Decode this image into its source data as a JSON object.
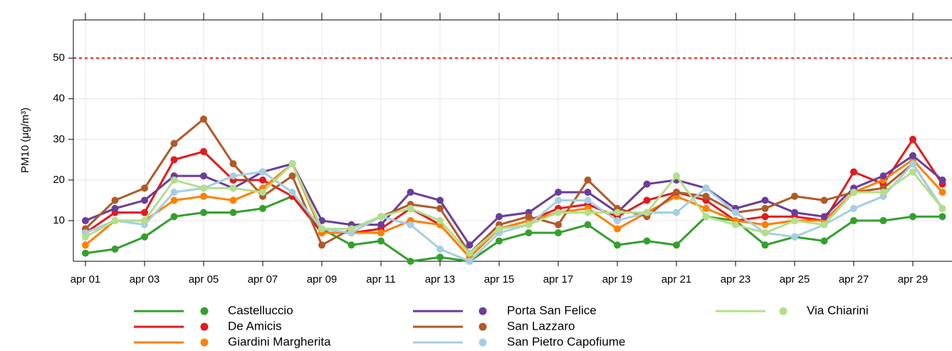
{
  "chart_data": {
    "type": "line",
    "y_label": "PM10 (μg/m³)",
    "categories": [
      "apr 01",
      null,
      "apr 03",
      null,
      "apr 05",
      null,
      "apr 07",
      null,
      "apr 09",
      null,
      "apr 11",
      null,
      "apr 13",
      null,
      "apr 15",
      null,
      "apr 17",
      null,
      "apr 19",
      null,
      "apr 21",
      null,
      "apr 23",
      null,
      "apr 25",
      null,
      "apr 27",
      null,
      "apr 29",
      null
    ],
    "ylim": [
      0,
      59.4
    ],
    "yticks": [
      10,
      20,
      30,
      40,
      50
    ],
    "grid": true,
    "threshold": 50,
    "threshold_color": "#e31a1c",
    "series": [
      {
        "name": "Castelluccio",
        "color": "#33a02c",
        "values": [
          2,
          3,
          6,
          11,
          12,
          12,
          13,
          16,
          8,
          4,
          5,
          0,
          1,
          0,
          5,
          7,
          7,
          9,
          4,
          5,
          4,
          11,
          10,
          4,
          6,
          5,
          10,
          10,
          11,
          11
        ]
      },
      {
        "name": "De Amicis",
        "color": "#e31a1c",
        "values": [
          7,
          12,
          12,
          25,
          27,
          20,
          20,
          16,
          7,
          7,
          8,
          13,
          9,
          1,
          8,
          10,
          13,
          14,
          11,
          15,
          17,
          15,
          10,
          11,
          11,
          10,
          22,
          19,
          30,
          19
        ]
      },
      {
        "name": "Giardini Margherita",
        "color": "#ff7f00",
        "values": [
          4,
          10,
          10,
          15,
          16,
          15,
          18,
          24,
          7,
          7,
          7,
          10,
          9,
          1,
          8,
          10,
          12,
          13,
          8,
          12,
          16,
          13,
          10,
          9,
          10,
          10,
          17,
          20,
          25,
          17
        ]
      },
      {
        "name": "Porta San Felice",
        "color": "#6a3d9a",
        "values": [
          10,
          13,
          15,
          21,
          21,
          18,
          22,
          24,
          10,
          9,
          9,
          17,
          15,
          4,
          11,
          12,
          17,
          17,
          12,
          19,
          20,
          18,
          13,
          15,
          12,
          11,
          18,
          21,
          26,
          20
        ]
      },
      {
        "name": "San Lazzaro",
        "color": "#b15928",
        "values": [
          8,
          15,
          18,
          29,
          35,
          24,
          16,
          21,
          4,
          8,
          11,
          14,
          13,
          2,
          9,
          11,
          9,
          20,
          13,
          11,
          17,
          16,
          12,
          13,
          16,
          15,
          17,
          18,
          24,
          13
        ]
      },
      {
        "name": "San Pietro Capofiume",
        "color": "#a6cee3",
        "values": [
          7,
          10,
          9,
          17,
          18,
          21,
          22,
          17,
          8,
          7,
          11,
          9,
          3,
          0,
          7,
          9,
          15,
          15,
          10,
          12,
          12,
          18,
          12,
          7,
          6,
          9,
          13,
          16,
          24,
          13
        ]
      },
      {
        "name": "Via Chiarini",
        "color": "#b2df8a",
        "values": [
          6,
          10,
          10,
          20,
          18,
          18,
          17,
          24,
          8,
          8,
          11,
          13,
          10,
          2,
          8,
          9,
          12,
          12,
          12,
          12,
          21,
          11,
          9,
          7,
          10,
          9,
          17,
          17,
          22,
          13
        ]
      }
    ]
  }
}
